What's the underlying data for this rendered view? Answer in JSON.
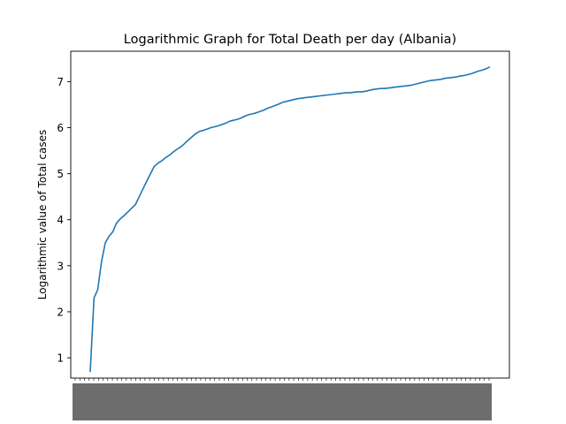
{
  "chart_data": {
    "type": "line",
    "title": "Logarithmic Graph for Total Death per day (Albania)",
    "xlabel": "",
    "ylabel": "Logarithmic value of Total cases",
    "x_is_dense_unreadable_dates": true,
    "ylim": [
      0.56,
      7.66
    ],
    "yticks": [
      1,
      2,
      3,
      4,
      5,
      6,
      7
    ],
    "grid": false,
    "series": [
      {
        "color": "#1f77b4",
        "y": [
          0.69,
          2.3,
          2.48,
          3.09,
          3.5,
          3.64,
          3.74,
          3.93,
          4.02,
          4.09,
          4.17,
          4.25,
          4.33,
          4.5,
          4.67,
          4.84,
          5.0,
          5.16,
          5.23,
          5.28,
          5.35,
          5.4,
          5.47,
          5.53,
          5.58,
          5.65,
          5.73,
          5.8,
          5.87,
          5.92,
          5.94,
          5.97,
          6.0,
          6.02,
          6.04,
          6.07,
          6.1,
          6.14,
          6.16,
          6.18,
          6.21,
          6.25,
          6.28,
          6.3,
          6.32,
          6.35,
          6.38,
          6.42,
          6.45,
          6.48,
          6.51,
          6.55,
          6.57,
          6.59,
          6.61,
          6.63,
          6.64,
          6.65,
          6.66,
          6.67,
          6.68,
          6.69,
          6.7,
          6.71,
          6.72,
          6.73,
          6.74,
          6.75,
          6.76,
          6.76,
          6.77,
          6.78,
          6.78,
          6.79,
          6.81,
          6.83,
          6.84,
          6.85,
          6.85,
          6.86,
          6.87,
          6.88,
          6.89,
          6.9,
          6.91,
          6.92,
          6.94,
          6.96,
          6.98,
          7.0,
          7.02,
          7.03,
          7.04,
          7.05,
          7.07,
          7.08,
          7.09,
          7.1,
          7.12,
          7.13,
          7.15,
          7.17,
          7.2,
          7.23,
          7.25,
          7.28,
          7.32
        ]
      }
    ]
  }
}
